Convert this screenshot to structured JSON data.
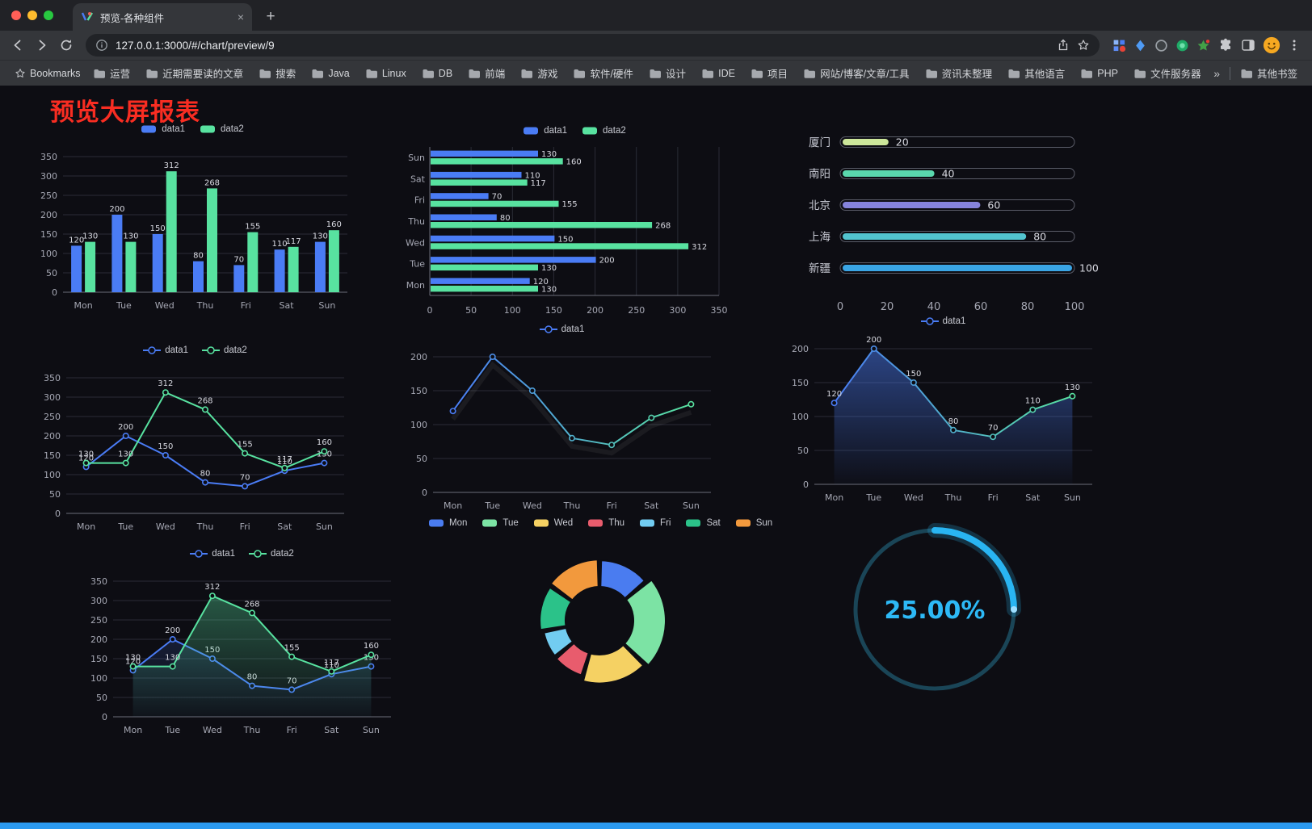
{
  "browser": {
    "tab": {
      "title": "预览-各种组件",
      "close": "×",
      "new_tab": "+"
    },
    "url": "127.0.0.1:3000/#/chart/preview/9",
    "bookmarks_bar": {
      "label": "Bookmarks",
      "items": [
        "运营",
        "近期需要读的文章",
        "搜索",
        "Java",
        "Linux",
        "DB",
        "前端",
        "游戏",
        "软件/硬件",
        "设计",
        "IDE",
        "项目",
        "网站/博客/文章/工具",
        "资讯未整理",
        "其他语言",
        "PHP",
        "文件服务器"
      ],
      "overflow": "»",
      "other": "其他书签"
    }
  },
  "page": {
    "title": "预览大屏报表",
    "title_color": "#f92d22",
    "footer_color": "#2b9af0",
    "background": "#0d0d13"
  },
  "chart_data": [
    {
      "id": "bar1",
      "type": "bar",
      "categories": [
        "Mon",
        "Tue",
        "Wed",
        "Thu",
        "Fri",
        "Sat",
        "Sun"
      ],
      "series": [
        {
          "name": "data1",
          "color": "#4a7cf5",
          "values": [
            120,
            200,
            150,
            80,
            70,
            110,
            130
          ]
        },
        {
          "name": "data2",
          "color": "#58e2a0",
          "values": [
            130,
            130,
            312,
            268,
            155,
            117,
            160
          ]
        }
      ],
      "ylim": [
        0,
        350
      ],
      "ytick": 50,
      "value_labels": true,
      "legend_position": "top",
      "grid": true
    },
    {
      "id": "hbar1",
      "type": "bar-horizontal",
      "categories": [
        "Mon",
        "Tue",
        "Wed",
        "Thu",
        "Fri",
        "Sat",
        "Sun"
      ],
      "series": [
        {
          "name": "data1",
          "color": "#4a7cf5",
          "values": [
            120,
            200,
            150,
            80,
            70,
            110,
            130
          ]
        },
        {
          "name": "data2",
          "color": "#58e2a0",
          "values": [
            130,
            130,
            312,
            268,
            155,
            117,
            160
          ]
        }
      ],
      "xlim": [
        0,
        350
      ],
      "xtick": 50,
      "value_labels": true,
      "legend_position": "top",
      "grid": true
    },
    {
      "id": "capsule1",
      "type": "bar-capsule",
      "items": [
        {
          "label": "厦门",
          "value": 20,
          "color": "#cde79b"
        },
        {
          "label": "南阳",
          "value": 40,
          "color": "#5ad8ae"
        },
        {
          "label": "北京",
          "value": 60,
          "color": "#8583dc"
        },
        {
          "label": "上海",
          "value": 80,
          "color": "#52c4cf"
        },
        {
          "label": "新疆",
          "value": 100,
          "color": "#3aa5e5"
        }
      ],
      "xlim": [
        0,
        100
      ],
      "axis_ticks": [
        0,
        20,
        40,
        60,
        80,
        100
      ]
    },
    {
      "id": "line2",
      "type": "line",
      "categories": [
        "Mon",
        "Tue",
        "Wed",
        "Thu",
        "Fri",
        "Sat",
        "Sun"
      ],
      "series": [
        {
          "name": "data1",
          "color": "#4a7cf5",
          "values": [
            120,
            200,
            150,
            80,
            70,
            110,
            130
          ]
        },
        {
          "name": "data2",
          "color": "#58e2a0",
          "values": [
            130,
            130,
            312,
            268,
            155,
            117,
            160
          ]
        }
      ],
      "ylim": [
        0,
        350
      ],
      "ytick": 50,
      "value_labels": true,
      "legend_position": "top",
      "grid": true
    },
    {
      "id": "lineGrad",
      "type": "line",
      "categories": [
        "Mon",
        "Tue",
        "Wed",
        "Thu",
        "Fri",
        "Sat",
        "Sun"
      ],
      "series": [
        {
          "name": "data1",
          "color_start": "#4a7cf5",
          "color_end": "#58e2a0",
          "values": [
            120,
            200,
            150,
            80,
            70,
            110,
            130
          ]
        }
      ],
      "ylim": [
        0,
        200
      ],
      "ytick": 50,
      "value_labels": false,
      "shadow": true,
      "legend_position": "top",
      "grid": true
    },
    {
      "id": "areaGrad",
      "type": "line",
      "categories": [
        "Mon",
        "Tue",
        "Wed",
        "Thu",
        "Fri",
        "Sat",
        "Sun"
      ],
      "series": [
        {
          "name": "data1",
          "color_start": "#4a7cf5",
          "color_end": "#58e2a0",
          "area_opacity": 0.5,
          "values": [
            120,
            200,
            150,
            80,
            70,
            110,
            130
          ]
        }
      ],
      "ylim": [
        0,
        200
      ],
      "ytick": 50,
      "value_labels": true,
      "legend_position": "top",
      "grid": true
    },
    {
      "id": "lineArea2",
      "type": "line",
      "categories": [
        "Mon",
        "Tue",
        "Wed",
        "Thu",
        "Fri",
        "Sat",
        "Sun"
      ],
      "series": [
        {
          "name": "data1",
          "color": "#4a7cf5",
          "area_opacity": 0.15,
          "values": [
            120,
            200,
            150,
            80,
            70,
            110,
            130
          ]
        },
        {
          "name": "data2",
          "color": "#58e2a0",
          "area_opacity": 0.35,
          "values": [
            130,
            130,
            312,
            268,
            155,
            117,
            160
          ]
        }
      ],
      "ylim": [
        0,
        350
      ],
      "ytick": 50,
      "value_labels": true,
      "legend_position": "top",
      "grid": true
    },
    {
      "id": "donut1",
      "type": "pie",
      "legend_position": "top",
      "items": [
        {
          "name": "Mon",
          "value": 120,
          "color": "#4a7cf0"
        },
        {
          "name": "Tue",
          "value": 200,
          "color": "#7ce3a4"
        },
        {
          "name": "Wed",
          "value": 150,
          "color": "#f5d163"
        },
        {
          "name": "Thu",
          "value": 80,
          "color": "#e85c6d"
        },
        {
          "name": "Fri",
          "value": 70,
          "color": "#72ccf1"
        },
        {
          "name": "Sat",
          "value": 110,
          "color": "#2bc289"
        },
        {
          "name": "Sun",
          "value": 130,
          "color": "#f2993d"
        }
      ]
    },
    {
      "id": "gauge1",
      "type": "gauge",
      "value": 25,
      "display": "25.00%",
      "arc_color": "#29b5f2",
      "track_color": "#1a4557",
      "text_color": "#2db9f6"
    }
  ]
}
